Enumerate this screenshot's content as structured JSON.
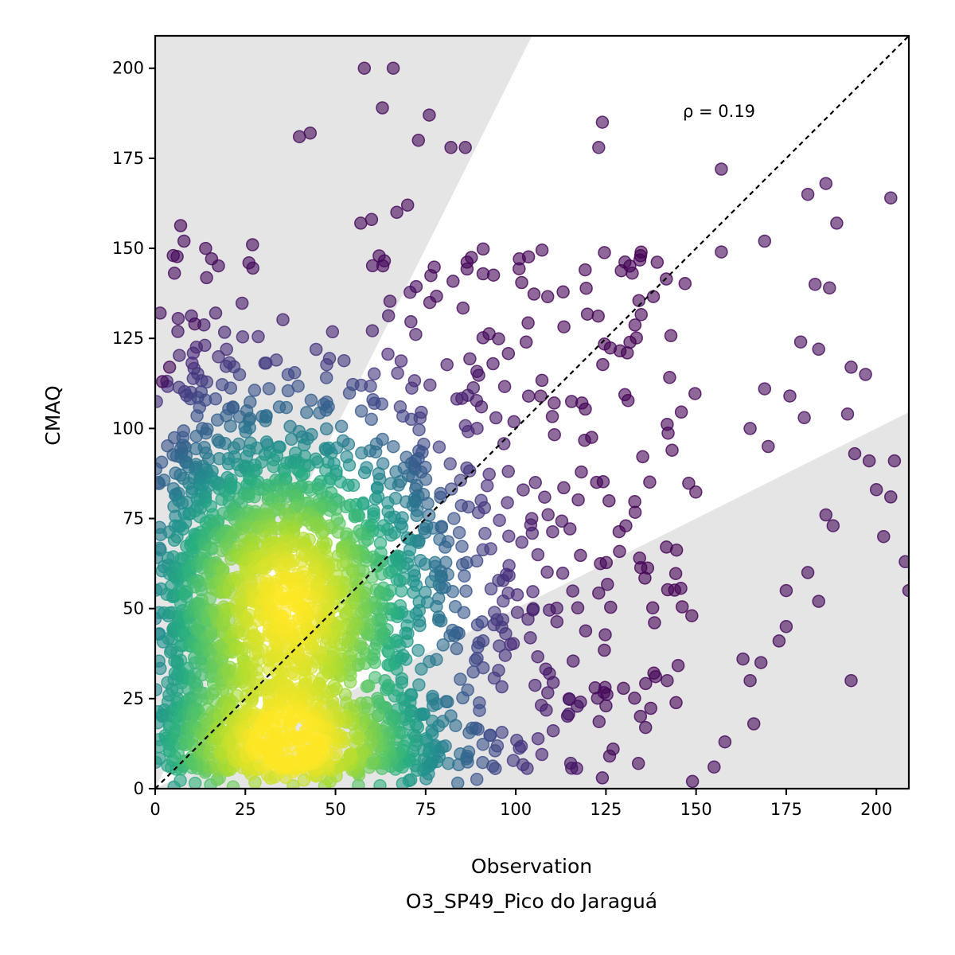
{
  "chart_data": {
    "type": "scatter",
    "xlabel": "Observation",
    "xlabel_line2": "O3_SP49_Pico do Jaraguá",
    "ylabel": "CMAQ",
    "xlim": [
      0,
      209
    ],
    "ylim": [
      0,
      209
    ],
    "xticks": [
      "0",
      "25",
      "50",
      "75",
      "100",
      "125",
      "150",
      "175",
      "200"
    ],
    "yticks": [
      "0",
      "25",
      "50",
      "75",
      "100",
      "125",
      "150",
      "175",
      "200"
    ],
    "annotation": "ρ = 0.19",
    "reference_line": "y = x (dashed)",
    "shaded_regions": "factor-of-two bounds outside y=2x and y=x/2",
    "colormap": "viridis (point density)",
    "grid": false,
    "density_center": [
      37,
      52
    ],
    "sample_points": [
      [
        58,
        200
      ],
      [
        66,
        200
      ],
      [
        63,
        189
      ],
      [
        76,
        187
      ],
      [
        40,
        181
      ],
      [
        43,
        182
      ],
      [
        73,
        180
      ],
      [
        82,
        178
      ],
      [
        86,
        178
      ],
      [
        124,
        185
      ],
      [
        123,
        178
      ],
      [
        157,
        172
      ],
      [
        181,
        165
      ],
      [
        186,
        168
      ],
      [
        204,
        164
      ],
      [
        189,
        157
      ],
      [
        169,
        152
      ],
      [
        157,
        149
      ],
      [
        183,
        140
      ],
      [
        187,
        139
      ],
      [
        179,
        124
      ],
      [
        184,
        122
      ],
      [
        193,
        117
      ],
      [
        197,
        115
      ],
      [
        176,
        109
      ],
      [
        180,
        103
      ],
      [
        192,
        104
      ],
      [
        169,
        111
      ],
      [
        165,
        100
      ],
      [
        170,
        95
      ],
      [
        194,
        93
      ],
      [
        198,
        91
      ],
      [
        205,
        91
      ],
      [
        200,
        83
      ],
      [
        204,
        81
      ],
      [
        208,
        63
      ],
      [
        209,
        55
      ],
      [
        202,
        70
      ],
      [
        186,
        76
      ],
      [
        188,
        73
      ],
      [
        181,
        60
      ],
      [
        175,
        55
      ],
      [
        184,
        52
      ],
      [
        173,
        41
      ],
      [
        168,
        35
      ],
      [
        163,
        36
      ],
      [
        165,
        30
      ],
      [
        175,
        45
      ],
      [
        193,
        30
      ],
      [
        166,
        18
      ],
      [
        158,
        13
      ],
      [
        155,
        6
      ],
      [
        149,
        2
      ],
      [
        142,
        30
      ],
      [
        136,
        17
      ],
      [
        127,
        11
      ],
      [
        124,
        3
      ],
      [
        125,
        23
      ],
      [
        122,
        28
      ],
      [
        134,
        7
      ],
      [
        14,
        150
      ],
      [
        8,
        152
      ],
      [
        5,
        148
      ],
      [
        26,
        146
      ],
      [
        27,
        151
      ],
      [
        11,
        129
      ],
      [
        2,
        113
      ],
      [
        4,
        117
      ],
      [
        67,
        160
      ],
      [
        70,
        162
      ],
      [
        57,
        157
      ],
      [
        60,
        158
      ]
    ]
  }
}
